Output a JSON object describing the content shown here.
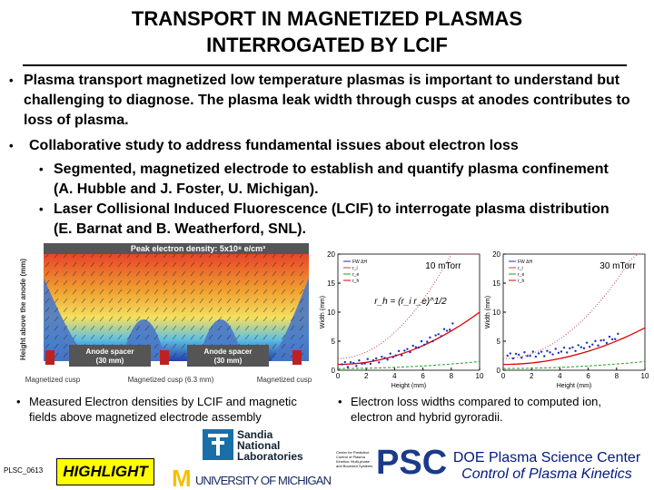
{
  "header": {
    "title_lines": [
      "TRANSPORT IN MAGNETIZED PLASMAS",
      "INTERROGATED BY LCIF"
    ]
  },
  "bullets": [
    {
      "text": "Plasma transport magnetized low temperature plasmas is important to understand but challenging to diagnose.  The plasma leak width through cusps at anodes contributes to loss of plasma."
    },
    {
      "text": "Collaborative study to address fundamental issues about electron loss",
      "sub": [
        "Segmented, magnetized electrode to establish and quantify plasma confinement (A. Hubble and J. Foster, U. Michigan).",
        "Laser Collisional Induced Fluorescence (LCIF) to interrogate plasma distribution  (E. Barnat and B. Weatherford, SNL)."
      ]
    }
  ],
  "figure": {
    "title": "Peak electron density: 5x10⁸ e/cm³",
    "y_label": "Height above the anode (mm)",
    "spacer_labels": [
      "Anode spacer\n(30 mm)",
      "Anode spacer\n(30 mm)"
    ],
    "cusp_labels": [
      "Magnetized cusp",
      "Magnetized cusp (6.3 mm)",
      "Magnetized cusp"
    ]
  },
  "plots": [
    {
      "label": "10 mTorr",
      "formula": "r_h = (r_i r_e)^1/2",
      "y_label": "Width (mm)",
      "x_label": "Height (mm)",
      "xticks": [
        0,
        2,
        4,
        6,
        8,
        10
      ],
      "yticks": [
        0,
        5,
        10,
        15,
        20
      ],
      "legend": [
        "FW ΔH",
        "r_i",
        "r_e",
        "r_h"
      ]
    },
    {
      "label": "30 mTorr",
      "y_label": "Width (mm)",
      "x_label": "Height (mm)",
      "xticks": [
        0,
        2,
        4,
        6,
        8,
        10
      ],
      "yticks": [
        0,
        5,
        10,
        15,
        20
      ],
      "legend": [
        "FW ΔH",
        "r_i",
        "r_e",
        "r_h"
      ]
    }
  ],
  "captions": [
    "Measured Electron densities by LCIF and magnetic fields above magnetized electrode assembly",
    "Electron loss widths compared to computed ion, electron and hybrid gyroradii."
  ],
  "footer": {
    "code": "PLSC_0613",
    "highlight": "HIGHLIGHT",
    "sandia": [
      "Sandia",
      "National",
      "Laboratories"
    ],
    "michigan": "UNIVERSITY OF MICHIGAN",
    "psc": "PSC",
    "psc_small": "Center for Predictive Control of Plasma Kinetics: Multi-phase and Bounded Systems",
    "center_lines": [
      "DOE Plasma Science Center",
      "Control of Plasma Kinetics"
    ]
  }
}
